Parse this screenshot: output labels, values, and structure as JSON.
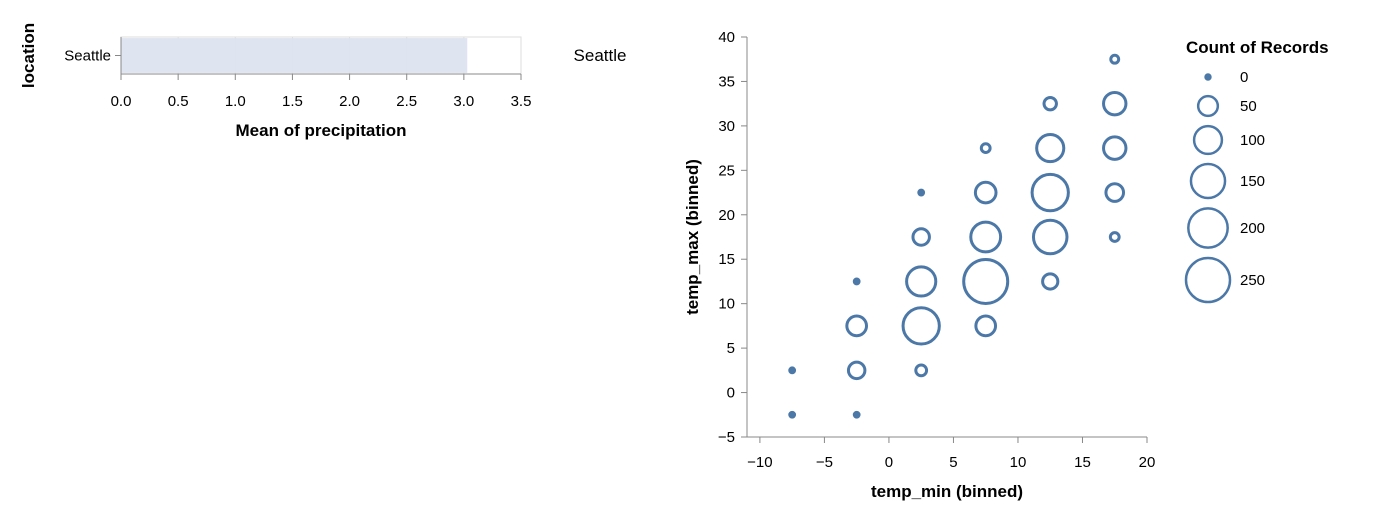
{
  "chart_data": [
    {
      "type": "bar",
      "orientation": "horizontal",
      "categories": [
        "Seattle"
      ],
      "values": [
        3.03
      ],
      "xlabel": "Mean of precipitation",
      "ylabel": "location",
      "xlim": [
        0,
        3.5
      ],
      "xticks": [
        "0.0",
        "0.5",
        "1.0",
        "1.5",
        "2.0",
        "2.5",
        "3.0",
        "3.5"
      ],
      "grid": true,
      "bar_color": "#dce3ef"
    },
    {
      "type": "scatter",
      "facet_label": "Seattle",
      "xlabel": "temp_min (binned)",
      "ylabel": "temp_max (binned)",
      "xlim": [
        -11,
        20
      ],
      "ylim": [
        -5,
        40
      ],
      "xticks": [
        "−10",
        "−5",
        "0",
        "5",
        "10",
        "15",
        "20"
      ],
      "yticks": [
        "−5",
        "0",
        "5",
        "10",
        "15",
        "20",
        "25",
        "30",
        "35",
        "40"
      ],
      "grid": false,
      "mark_color": "#4c78a8",
      "size_legend": {
        "title": "Count of Records",
        "placement": "right",
        "values": [
          0,
          50,
          100,
          150,
          200,
          250
        ],
        "labels": [
          "0",
          "50",
          "100",
          "150",
          "200",
          "250"
        ]
      },
      "points": [
        {
          "x": -7.5,
          "y": -2.5,
          "count": 5
        },
        {
          "x": -7.5,
          "y": 2.5,
          "count": 5
        },
        {
          "x": -2.5,
          "y": -2.5,
          "count": 5
        },
        {
          "x": -2.5,
          "y": 2.5,
          "count": 35
        },
        {
          "x": -2.5,
          "y": 7.5,
          "count": 50
        },
        {
          "x": -2.5,
          "y": 12.5,
          "count": 5
        },
        {
          "x": 2.5,
          "y": 2.5,
          "count": 15
        },
        {
          "x": 2.5,
          "y": 7.5,
          "count": 170
        },
        {
          "x": 2.5,
          "y": 12.5,
          "count": 110
        },
        {
          "x": 2.5,
          "y": 17.5,
          "count": 35
        },
        {
          "x": 2.5,
          "y": 22.5,
          "count": 5
        },
        {
          "x": 7.5,
          "y": 7.5,
          "count": 50
        },
        {
          "x": 7.5,
          "y": 12.5,
          "count": 250
        },
        {
          "x": 7.5,
          "y": 17.5,
          "count": 115
        },
        {
          "x": 7.5,
          "y": 22.5,
          "count": 55
        },
        {
          "x": 7.5,
          "y": 27.5,
          "count": 10
        },
        {
          "x": 12.5,
          "y": 12.5,
          "count": 30
        },
        {
          "x": 12.5,
          "y": 17.5,
          "count": 145
        },
        {
          "x": 12.5,
          "y": 22.5,
          "count": 170
        },
        {
          "x": 12.5,
          "y": 27.5,
          "count": 95
        },
        {
          "x": 12.5,
          "y": 32.5,
          "count": 20
        },
        {
          "x": 17.5,
          "y": 17.5,
          "count": 10
        },
        {
          "x": 17.5,
          "y": 22.5,
          "count": 40
        },
        {
          "x": 17.5,
          "y": 27.5,
          "count": 65
        },
        {
          "x": 17.5,
          "y": 32.5,
          "count": 65
        },
        {
          "x": 17.5,
          "y": 37.5,
          "count": 8
        }
      ]
    }
  ]
}
